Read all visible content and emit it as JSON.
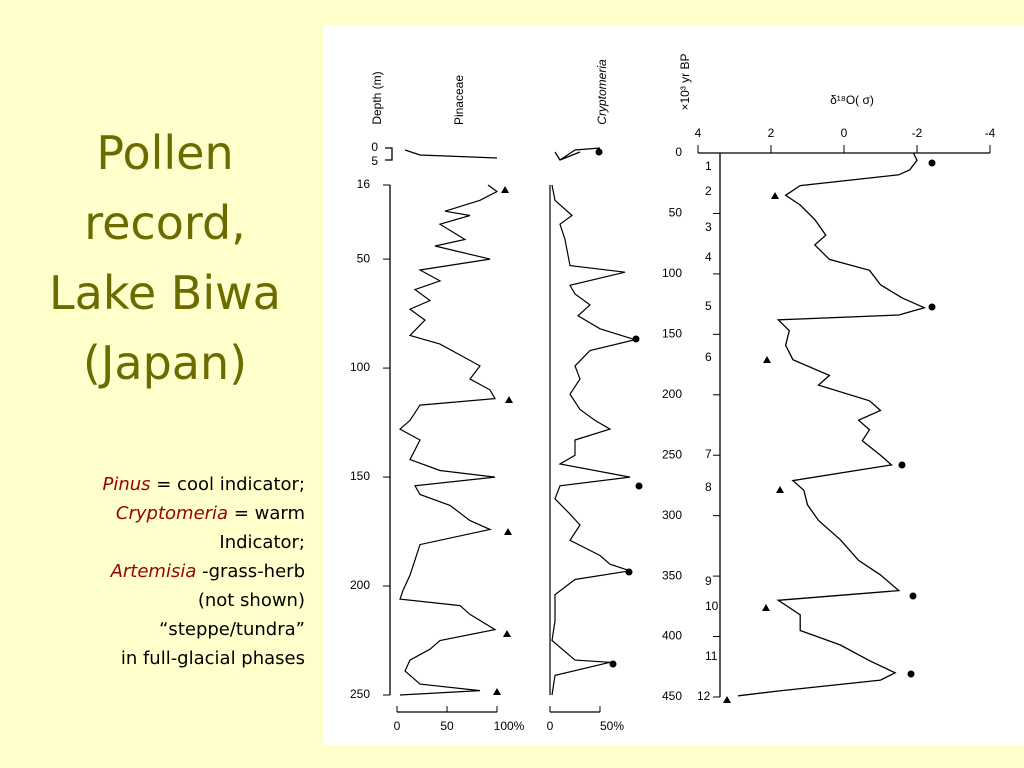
{
  "title": [
    "Pollen",
    "record,",
    "Lake Biwa",
    "(Japan)"
  ],
  "notes": [
    [
      {
        "text": "Pinus",
        "italic": true
      },
      {
        "text": " = cool indicator;"
      }
    ],
    [
      {
        "text": "Cryptomeria",
        "italic": true
      },
      {
        "text": " = warm"
      }
    ],
    [
      {
        "text": "Indicator;"
      }
    ],
    [
      {
        "text": "Artemisia",
        "italic": true
      },
      {
        "text": " -grass-herb"
      }
    ],
    [
      {
        "text": "(not shown)"
      }
    ],
    [
      {
        "text": "“steppe/tundra”"
      }
    ],
    [
      {
        "text": "in full-glacial phases"
      }
    ]
  ],
  "figure": {
    "depth_label": "Depth (m)",
    "top_depth_ticks": [
      0,
      5
    ],
    "depth_lim": [
      16,
      250
    ],
    "depth_ticks": [
      16,
      50,
      100,
      150,
      200,
      250
    ],
    "panels": [
      {
        "name": "Pinaceae",
        "xlim": [
          0,
          100
        ],
        "xticks": [
          0,
          50,
          {
            "value": 100,
            "label": "100%"
          }
        ],
        "depth": [
          16,
          19,
          23,
          28,
          30,
          34,
          41,
          44,
          50,
          55,
          60,
          64,
          69,
          73,
          78,
          85,
          89,
          94,
          99,
          105,
          110,
          114,
          117,
          124,
          128,
          133,
          142,
          147,
          150,
          154,
          158,
          163,
          170,
          174,
          181,
          188,
          195,
          202,
          206,
          209,
          213,
          220,
          225,
          229,
          234,
          239,
          245,
          248,
          250
        ],
        "values": [
          91,
          100,
          83,
          48,
          73,
          43,
          68,
          38,
          93,
          23,
          43,
          18,
          33,
          13,
          28,
          13,
          43,
          63,
          83,
          73,
          93,
          98,
          23,
          13,
          3,
          23,
          13,
          43,
          98,
          18,
          23,
          53,
          73,
          93,
          23,
          18,
          13,
          6,
          3,
          63,
          73,
          98,
          43,
          33,
          13,
          8,
          23,
          83,
          3
        ]
      },
      {
        "name": "Cryptomeria",
        "italic": true,
        "xlim": [
          0,
          50
        ],
        "xticks": [
          0,
          {
            "value": 50,
            "label": "50%"
          }
        ],
        "depth": [
          16,
          23,
          30,
          34,
          41,
          53,
          56,
          62,
          66,
          71,
          76,
          82,
          87,
          92,
          99,
          105,
          112,
          119,
          124,
          128,
          133,
          140,
          144,
          150,
          154,
          160,
          167,
          172,
          179,
          186,
          190,
          193,
          197,
          204,
          216,
          225,
          234,
          235,
          241,
          250
        ],
        "values": [
          2,
          5,
          22,
          10,
          15,
          20,
          75,
          20,
          25,
          40,
          28,
          50,
          85,
          40,
          25,
          30,
          20,
          30,
          45,
          60,
          25,
          25,
          10,
          80,
          10,
          5,
          20,
          30,
          20,
          50,
          60,
          80,
          25,
          5,
          5,
          2,
          25,
          60,
          5,
          2
        ]
      }
    ],
    "isotope": {
      "age_label": "×10³ yr BP",
      "title": "δ¹⁸O( σ)",
      "xlim": [
        4,
        -4
      ],
      "xticks": [
        4,
        2,
        0,
        -2,
        -4
      ],
      "ylim": [
        0,
        450
      ],
      "yticks": [
        0,
        50,
        100,
        150,
        200,
        250,
        300,
        350,
        400,
        450
      ],
      "stages": [
        "1",
        "2",
        "3",
        "4",
        "5",
        "6",
        "7",
        "8",
        "9",
        "10",
        "11",
        "12"
      ],
      "age": [
        0,
        6,
        14,
        18,
        27,
        35,
        43,
        55,
        68,
        76,
        88,
        97,
        109,
        120,
        128,
        134,
        138,
        147,
        159,
        171,
        184,
        192,
        205,
        213,
        221,
        229,
        238,
        250,
        258,
        271,
        279,
        291,
        304,
        320,
        337,
        349,
        362,
        370,
        382,
        395,
        407,
        420,
        430,
        436,
        445,
        449
      ],
      "values": [
        -1.9,
        -2.0,
        -1.8,
        -1.5,
        1.2,
        1.6,
        1.2,
        0.8,
        0.5,
        0.8,
        0.4,
        -0.7,
        -1.0,
        -1.6,
        -2.2,
        -1.5,
        1.8,
        1.5,
        1.6,
        1.4,
        0.4,
        0.7,
        -0.7,
        -1.0,
        -0.4,
        -0.7,
        -0.5,
        -1.0,
        -1.3,
        1.4,
        1.1,
        1.0,
        0.7,
        0.1,
        -0.4,
        -1.0,
        -1.5,
        1.8,
        1.2,
        1.2,
        0.1,
        -0.7,
        -1.4,
        -1.0,
        1.8,
        2.9
      ]
    }
  }
}
